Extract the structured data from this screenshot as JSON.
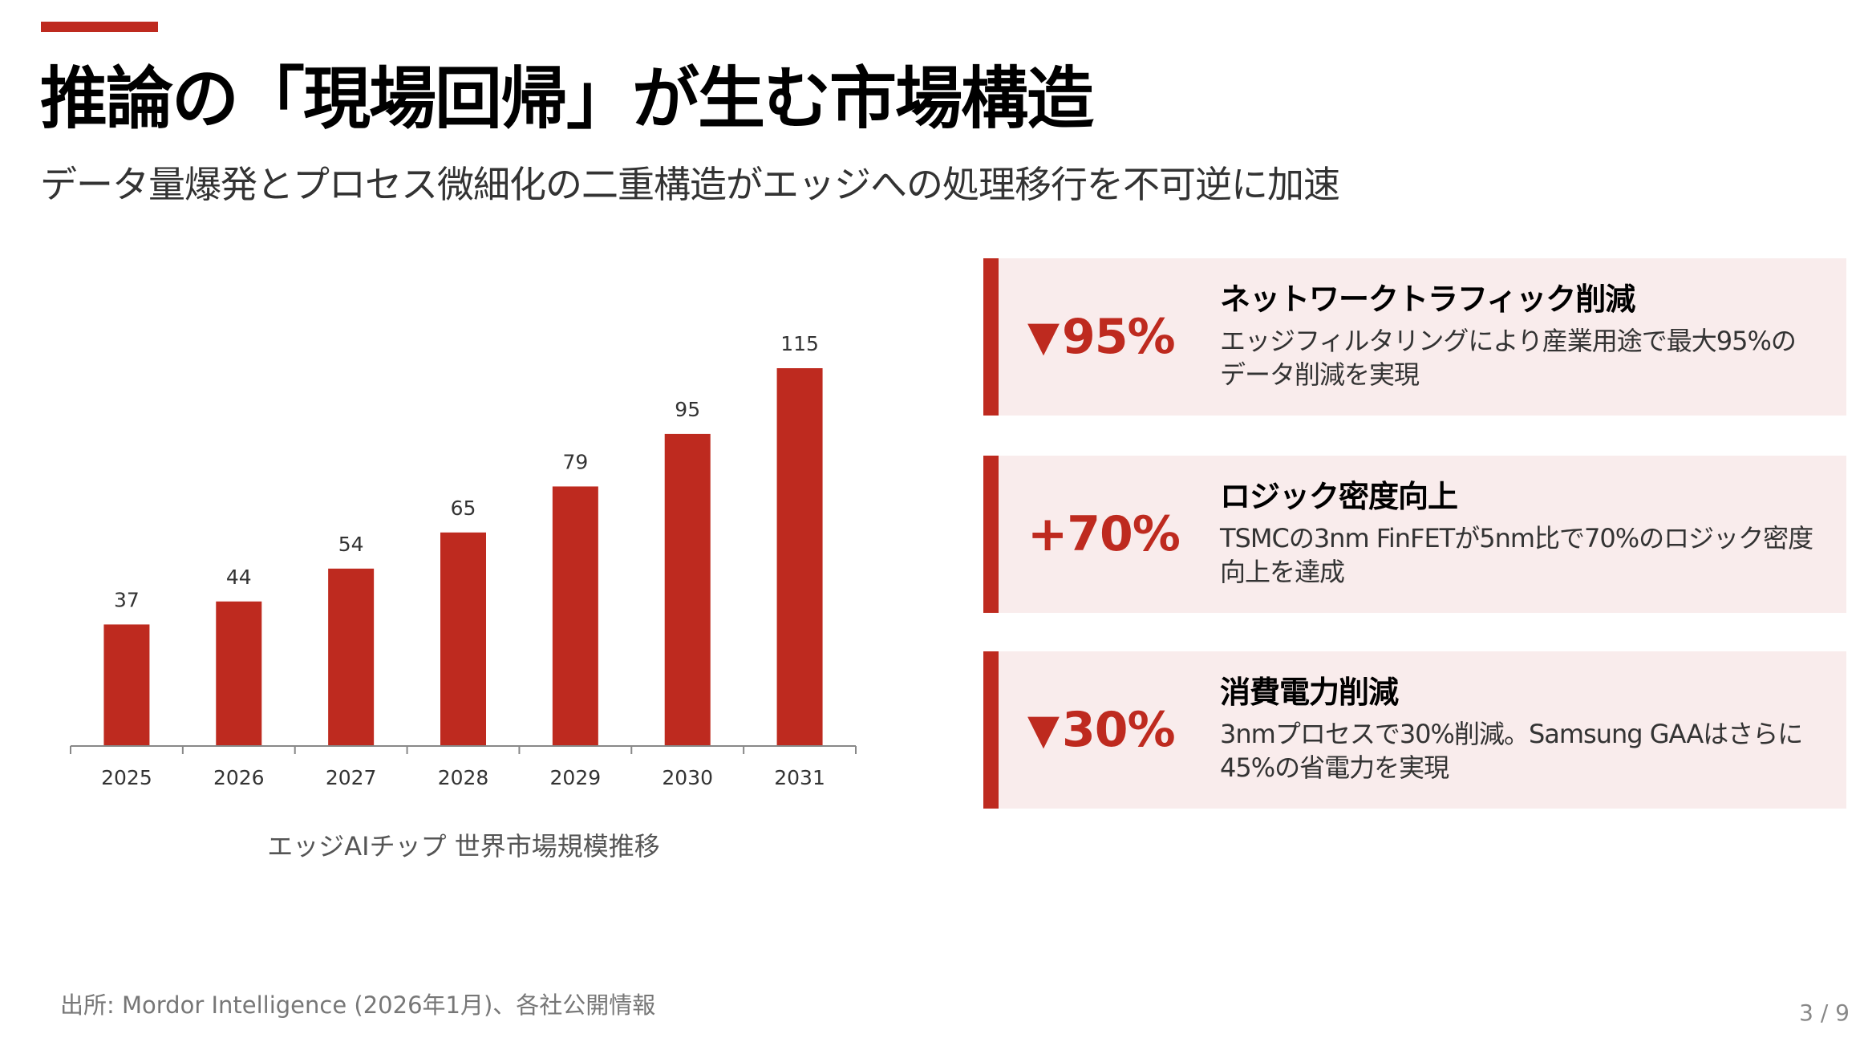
{
  "header": {
    "title": "推論の「現場回帰」が生む市場構造",
    "subtitle": "データ量爆発とプロセス微細化の二重構造がエッジへの処理移行を不可逆に加速"
  },
  "chart_data": {
    "type": "bar",
    "title": "エッジAIチップ 世界市場規模推移",
    "categories": [
      "2025",
      "2026",
      "2027",
      "2028",
      "2029",
      "2030",
      "2031"
    ],
    "values": [
      37,
      44,
      54,
      65,
      79,
      95,
      115
    ],
    "data_labels": [
      "37",
      "44",
      "54",
      "65",
      "79",
      "95",
      "115"
    ],
    "xlabel": "",
    "ylabel": "",
    "ylim": [
      0,
      115
    ],
    "grid": false,
    "bar_color": "#BE2A1F"
  },
  "cards": [
    {
      "icon": "triangle-down-icon",
      "tri": "▼",
      "value": "95%",
      "title": "ネットワークトラフィック削減",
      "desc": "エッジフィルタリングにより産業用途で最大95%のデータ削減を実現"
    },
    {
      "icon": "",
      "tri": "",
      "value": "+70%",
      "title": "ロジック密度向上",
      "desc": "TSMCの3nm FinFETが5nm比で70%のロジック密度向上を達成"
    },
    {
      "icon": "triangle-down-icon",
      "tri": "▼",
      "value": "30%",
      "title": "消費電力削減",
      "desc": "3nmプロセスで30%削減。Samsung GAAはさらに45%の省電力を実現"
    }
  ],
  "footer": {
    "source": "出所: Mordor Intelligence (2026年1月)、各社公開情報",
    "page": "3 / 9"
  },
  "colors": {
    "accent": "#BE2A1F",
    "card_bg": "#F9ECEC"
  }
}
